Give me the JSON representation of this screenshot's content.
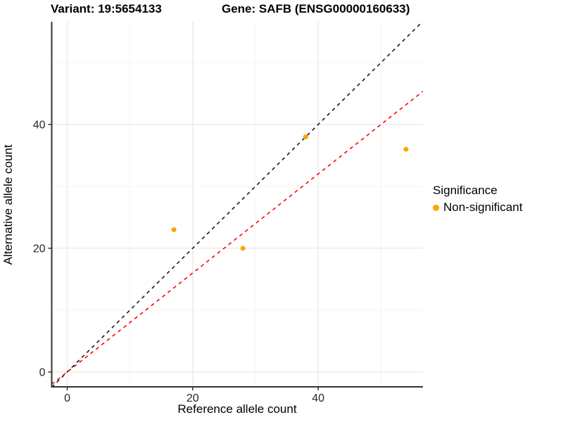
{
  "titles": {
    "variant": "Variant: 19:5654133",
    "gene": "Gene: SAFB (ENSG00000160633)"
  },
  "axes": {
    "x_label": "Reference allele count",
    "y_label": "Alternative allele count"
  },
  "legend": {
    "title": "Significance",
    "items": [
      {
        "label": "Non-significant",
        "color": "#FFA500"
      }
    ]
  },
  "colors": {
    "point": "#FFA500",
    "identity_line": "#1a1a1a",
    "fitted_line": "#FF0000",
    "grid_major": "#E9E9E9",
    "grid_minor": "#F4F4F4",
    "axis": "#333333",
    "tick_text": "#262626"
  },
  "chart_data": {
    "type": "scatter",
    "title": "Variant: 19:5654133 — Gene: SAFB (ENSG00000160633)",
    "xlabel": "Reference allele count",
    "ylabel": "Alternative allele count",
    "xlim": [
      -2.47,
      56.7
    ],
    "ylim": [
      -2.4,
      56.6
    ],
    "x_ticks": [
      0,
      20,
      40
    ],
    "y_ticks": [
      0,
      20,
      40
    ],
    "x_minor": [
      10,
      30,
      50
    ],
    "y_minor": [
      10,
      30,
      50
    ],
    "grid": true,
    "legend_position": "right",
    "series": [
      {
        "name": "Non-significant",
        "color": "#FFA500",
        "points": [
          [
            17,
            23
          ],
          [
            28,
            20
          ],
          [
            38,
            38
          ],
          [
            54,
            36
          ]
        ]
      }
    ],
    "reference_lines": [
      {
        "name": "identity",
        "slope": 1.0,
        "intercept": 0,
        "color": "#1a1a1a",
        "style": "dashed"
      },
      {
        "name": "fitted",
        "slope": 0.8,
        "intercept": 0,
        "color": "#FF0000",
        "style": "dashed"
      }
    ]
  }
}
